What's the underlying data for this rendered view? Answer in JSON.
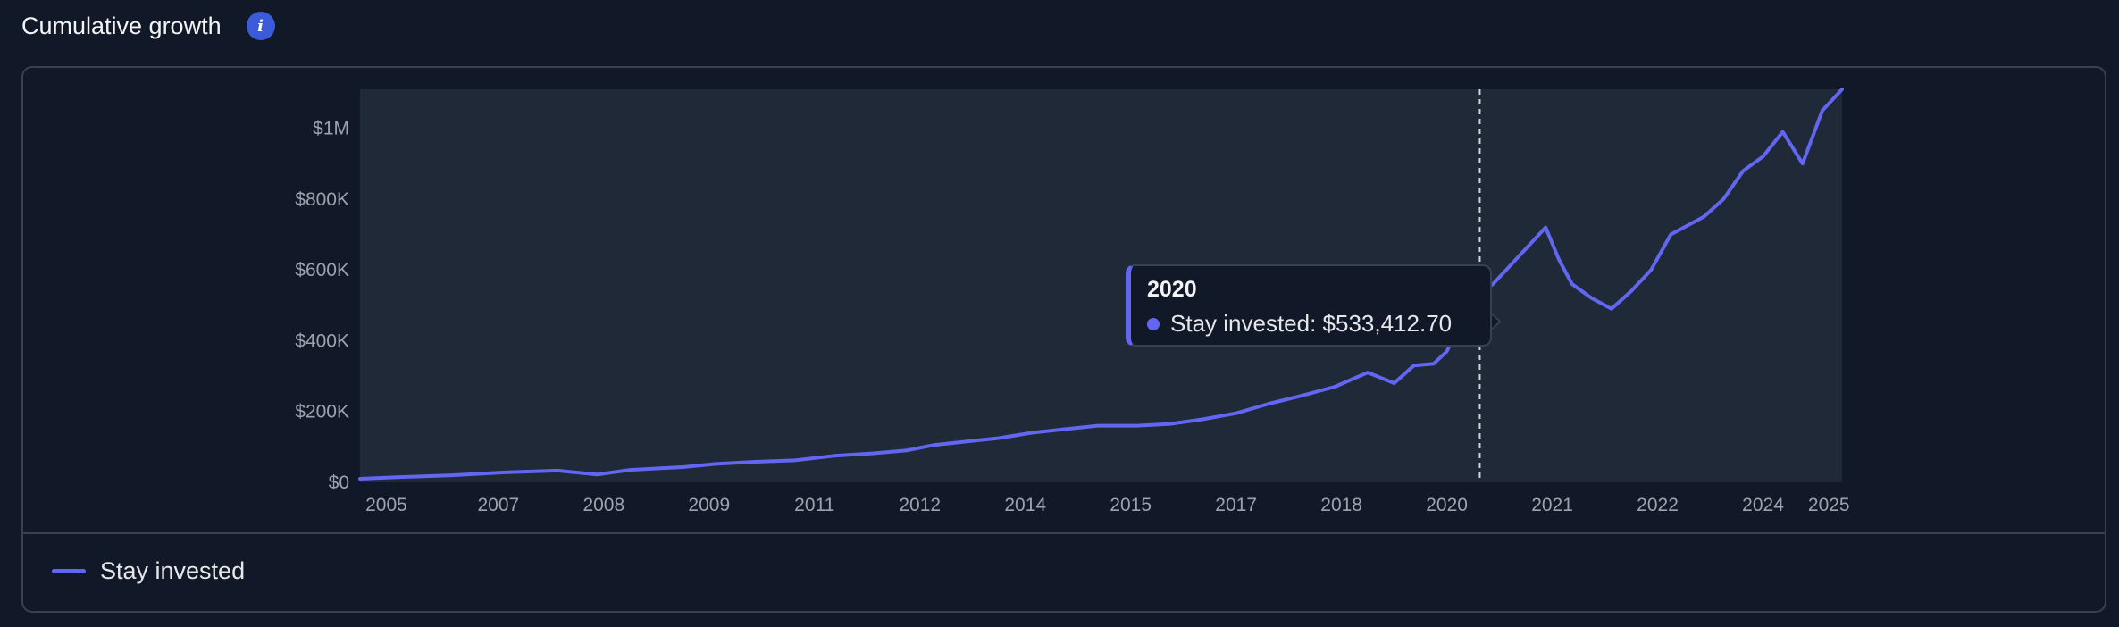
{
  "header": {
    "title": "Cumulative growth",
    "info_icon": "info-icon"
  },
  "colors": {
    "page_bg": "#111827",
    "plot_bg": "#1f2937",
    "series": "#6366f1",
    "accent_info": "#3b5bdb"
  },
  "legend": {
    "items": [
      {
        "label": "Stay invested",
        "color": "#6366f1"
      }
    ]
  },
  "tooltip": {
    "year": "2020",
    "series": "Stay invested",
    "value": "$533,412.70",
    "text": "Stay invested: $533,412.70"
  },
  "chart_data": {
    "type": "line",
    "title": "Cumulative growth",
    "xlabel": "",
    "ylabel": "",
    "y_tick_labels": [
      "$0",
      "$200K",
      "$400K",
      "$600K",
      "$800K",
      "$1M"
    ],
    "y_ticks": [
      0,
      200000,
      400000,
      600000,
      800000,
      1000000
    ],
    "x_tick_labels": [
      "2005",
      "2007",
      "2008",
      "2009",
      "2011",
      "2012",
      "2014",
      "2015",
      "2017",
      "2018",
      "2020",
      "2021",
      "2022",
      "2024",
      "2025"
    ],
    "x_ticks": [
      2005.0,
      2006.7,
      2008.3,
      2009.9,
      2011.5,
      2013.1,
      2014.7,
      2016.3,
      2017.9,
      2019.5,
      2021.1,
      2022.7,
      2024.3,
      2025.9,
      2026.9
    ],
    "xlim": [
      2004.6,
      2027.1
    ],
    "ylim": [
      0,
      1110000
    ],
    "grid": false,
    "legend_position": "bottom-left",
    "hover_x": 2021.6,
    "series": [
      {
        "name": "Stay invested",
        "x": [
          2004.6,
          2005.2,
          2006.0,
          2006.8,
          2007.6,
          2008.2,
          2008.7,
          2009.2,
          2009.5,
          2010.0,
          2010.6,
          2011.2,
          2011.8,
          2012.4,
          2012.9,
          2013.3,
          2013.8,
          2014.3,
          2014.8,
          2015.3,
          2015.8,
          2016.4,
          2016.9,
          2017.4,
          2017.9,
          2018.4,
          2018.9,
          2019.4,
          2019.9,
          2020.3,
          2020.6,
          2020.9,
          2021.1,
          2021.35,
          2021.5,
          2021.6,
          2021.8,
          2022.0,
          2022.3,
          2022.6,
          2022.8,
          2023.0,
          2023.3,
          2023.6,
          2023.9,
          2024.2,
          2024.5,
          2024.7,
          2025.0,
          2025.3,
          2025.6,
          2025.9,
          2026.2,
          2026.5,
          2026.8,
          2027.1
        ],
        "y": [
          10000,
          15000,
          20000,
          28000,
          33000,
          22000,
          35000,
          40000,
          43000,
          52000,
          58000,
          62000,
          75000,
          82000,
          90000,
          105000,
          115000,
          125000,
          140000,
          150000,
          160000,
          160000,
          165000,
          178000,
          195000,
          222000,
          245000,
          270000,
          310000,
          280000,
          330000,
          335000,
          370000,
          470000,
          520000,
          533412.7,
          560000,
          600000,
          660000,
          720000,
          630000,
          560000,
          520000,
          490000,
          540000,
          600000,
          700000,
          720000,
          750000,
          800000,
          880000,
          920000,
          990000,
          900000,
          1050000,
          1110000
        ]
      }
    ]
  }
}
